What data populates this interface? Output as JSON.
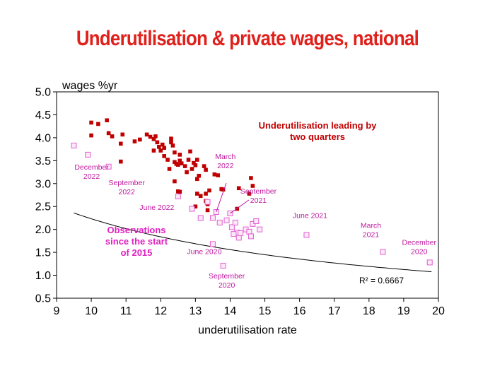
{
  "title": "Underutilisation & private wages, national",
  "chart_data": {
    "type": "scatter",
    "title": "Underutilisation & private wages, national",
    "xlabel": "underutilisation rate",
    "ylabel": "wages %yr",
    "xlim": [
      9,
      20
    ],
    "ylim": [
      0.5,
      5.0
    ],
    "xticks": [
      "9",
      "10",
      "11",
      "12",
      "13",
      "14",
      "15",
      "16",
      "17",
      "18",
      "19",
      "20"
    ],
    "yticks": [
      "0.5",
      "1.0",
      "1.5",
      "2.0",
      "2.5",
      "3.0",
      "3.5",
      "4.0",
      "4.5",
      "5.0"
    ],
    "grid": false,
    "r_squared_label": "R² = 0.6667",
    "annotations": {
      "leading": [
        "Underutilisation leading by",
        "two quarters"
      ],
      "since2015": [
        "Observations",
        "since the start",
        "of 2015"
      ]
    },
    "point_labels": [
      {
        "lines": [
          "December",
          "2022"
        ],
        "point": [
          9.5,
          3.83
        ]
      },
      {
        "lines": [
          "September",
          "2022"
        ],
        "point": [
          9.9,
          3.63
        ]
      },
      {
        "lines": [
          "June 2022"
        ],
        "point": [
          12.5,
          2.72
        ]
      },
      {
        "lines": [
          "March",
          "2022"
        ],
        "point": [
          13.6,
          2.38
        ]
      },
      {
        "lines": [
          "September",
          "2021"
        ],
        "point": [
          14.0,
          2.35
        ]
      },
      {
        "lines": [
          "June 2021"
        ],
        "point": [
          16.2,
          1.88
        ]
      },
      {
        "lines": [
          "March",
          "2021"
        ],
        "point": [
          18.4,
          1.51
        ]
      },
      {
        "lines": [
          "December",
          "2020"
        ],
        "point": [
          19.75,
          1.28
        ]
      },
      {
        "lines": [
          "June 2020"
        ],
        "point": [
          13.5,
          1.68
        ]
      },
      {
        "lines": [
          "September",
          "2020"
        ],
        "point": [
          13.8,
          1.21
        ]
      }
    ],
    "trend": {
      "type": "power",
      "a": 26.03,
      "b": -1.0666,
      "x_range": [
        9.5,
        19.8
      ]
    },
    "series": [
      {
        "type": "filled-square",
        "color": "#c00000",
        "points": [
          [
            10.0,
            4.33
          ],
          [
            10.0,
            4.05
          ],
          [
            10.2,
            4.3
          ],
          [
            10.45,
            4.38
          ],
          [
            10.5,
            4.1
          ],
          [
            10.6,
            4.03
          ],
          [
            10.85,
            3.87
          ],
          [
            10.9,
            4.07
          ],
          [
            10.85,
            3.48
          ],
          [
            11.25,
            3.92
          ],
          [
            11.4,
            3.96
          ],
          [
            11.6,
            4.07
          ],
          [
            11.7,
            4.02
          ],
          [
            11.8,
            3.97
          ],
          [
            11.85,
            4.03
          ],
          [
            11.8,
            3.72
          ],
          [
            11.9,
            3.9
          ],
          [
            11.95,
            3.8
          ],
          [
            12.0,
            3.72
          ],
          [
            12.05,
            3.85
          ],
          [
            12.1,
            3.78
          ],
          [
            12.1,
            3.6
          ],
          [
            12.2,
            3.52
          ],
          [
            12.25,
            3.32
          ],
          [
            12.3,
            3.98
          ],
          [
            12.3,
            3.9
          ],
          [
            12.35,
            3.83
          ],
          [
            12.4,
            3.68
          ],
          [
            12.4,
            3.47
          ],
          [
            12.45,
            3.43
          ],
          [
            12.5,
            3.41
          ],
          [
            12.55,
            3.63
          ],
          [
            12.55,
            3.5
          ],
          [
            12.6,
            3.44
          ],
          [
            12.4,
            3.05
          ],
          [
            12.5,
            2.83
          ],
          [
            12.55,
            2.82
          ],
          [
            12.7,
            3.38
          ],
          [
            12.75,
            3.25
          ],
          [
            12.8,
            3.52
          ],
          [
            12.85,
            3.7
          ],
          [
            12.9,
            3.32
          ],
          [
            12.95,
            3.45
          ],
          [
            13.05,
            3.52
          ],
          [
            13.0,
            3.4
          ],
          [
            13.05,
            3.1
          ],
          [
            13.1,
            3.17
          ],
          [
            13.25,
            3.38
          ],
          [
            13.3,
            3.3
          ],
          [
            13.4,
            2.85
          ],
          [
            13.3,
            2.78
          ],
          [
            13.05,
            2.78
          ],
          [
            13.15,
            2.73
          ],
          [
            13.3,
            2.62
          ],
          [
            13.35,
            2.55
          ],
          [
            13.35,
            2.42
          ],
          [
            13.0,
            2.5
          ],
          [
            13.55,
            3.2
          ],
          [
            13.65,
            3.18
          ],
          [
            13.75,
            2.88
          ],
          [
            13.8,
            2.87
          ],
          [
            14.25,
            2.9
          ],
          [
            14.55,
            2.78
          ],
          [
            14.6,
            3.12
          ],
          [
            14.65,
            2.95
          ],
          [
            14.2,
            2.45
          ]
        ]
      },
      {
        "type": "hollow-square",
        "color": "#e060d0",
        "points": [
          [
            9.5,
            3.83
          ],
          [
            9.9,
            3.63
          ],
          [
            10.5,
            3.37
          ],
          [
            12.5,
            2.72
          ],
          [
            12.9,
            2.45
          ],
          [
            13.15,
            2.25
          ],
          [
            13.35,
            2.6
          ],
          [
            13.5,
            2.25
          ],
          [
            13.6,
            2.38
          ],
          [
            13.7,
            2.15
          ],
          [
            13.9,
            2.2
          ],
          [
            14.0,
            2.35
          ],
          [
            14.05,
            2.05
          ],
          [
            14.15,
            2.15
          ],
          [
            14.2,
            1.93
          ],
          [
            14.25,
            1.82
          ],
          [
            14.3,
            1.92
          ],
          [
            14.45,
            2.0
          ],
          [
            14.55,
            1.95
          ],
          [
            14.6,
            1.85
          ],
          [
            14.65,
            2.12
          ],
          [
            14.75,
            2.18
          ],
          [
            14.85,
            2.0
          ],
          [
            14.1,
            1.9
          ],
          [
            13.5,
            1.68
          ],
          [
            13.8,
            1.21
          ],
          [
            16.2,
            1.88
          ],
          [
            18.4,
            1.51
          ],
          [
            19.75,
            1.28
          ]
        ]
      }
    ]
  }
}
